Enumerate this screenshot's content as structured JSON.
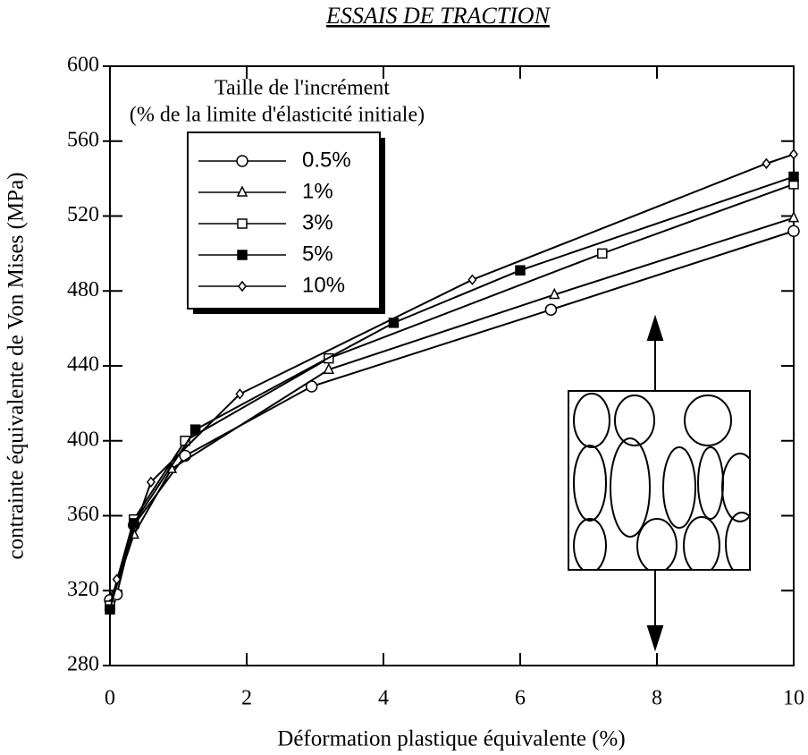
{
  "chart_data": {
    "type": "line",
    "title": "ESSAIS DE TRACTION",
    "x_label": "Déformation plastique équivalente  (%)",
    "y_label": "contrainte équivalente de Von Mises  (MPa)",
    "legend_title": [
      "Taille de l'incrément",
      "(% de la limite d'élasticité initiale)"
    ],
    "legend_position": "upper left",
    "xlim": [
      0,
      10
    ],
    "xticks": [
      0,
      2,
      4,
      6,
      8,
      10
    ],
    "ylim": [
      280,
      600
    ],
    "yticks": [
      280,
      320,
      360,
      400,
      440,
      480,
      520,
      560,
      600
    ],
    "series": [
      {
        "name": "0.5%",
        "color": "#000000",
        "marker": "circle",
        "x": [
          0,
          0.1,
          0.35,
          1.1,
          2.95,
          6.45,
          10
        ],
        "values": [
          315,
          318,
          355,
          392,
          429,
          470,
          512
        ]
      },
      {
        "name": "1%",
        "color": "#000000",
        "marker": "triangle",
        "x": [
          0,
          0.35,
          0.9,
          3.2,
          6.5,
          10
        ],
        "values": [
          312,
          350,
          385,
          438,
          478,
          519
        ]
      },
      {
        "name": "3%",
        "color": "#000000",
        "marker": "square",
        "x": [
          0,
          0.35,
          1.1,
          3.2,
          7.2,
          10
        ],
        "values": [
          312,
          358,
          400,
          444,
          500,
          537
        ]
      },
      {
        "name": "5%",
        "color": "#000000",
        "marker": "filled-square",
        "x": [
          0,
          0.35,
          1.25,
          4.15,
          6,
          10
        ],
        "values": [
          310,
          356,
          406,
          463,
          491,
          541
        ]
      },
      {
        "name": "10%",
        "color": "#000000",
        "marker": "diamond",
        "x": [
          0.1,
          0.6,
          1.9,
          5.3,
          9.6,
          10
        ],
        "values": [
          326,
          378,
          425,
          486,
          548,
          553
        ]
      }
    ]
  }
}
